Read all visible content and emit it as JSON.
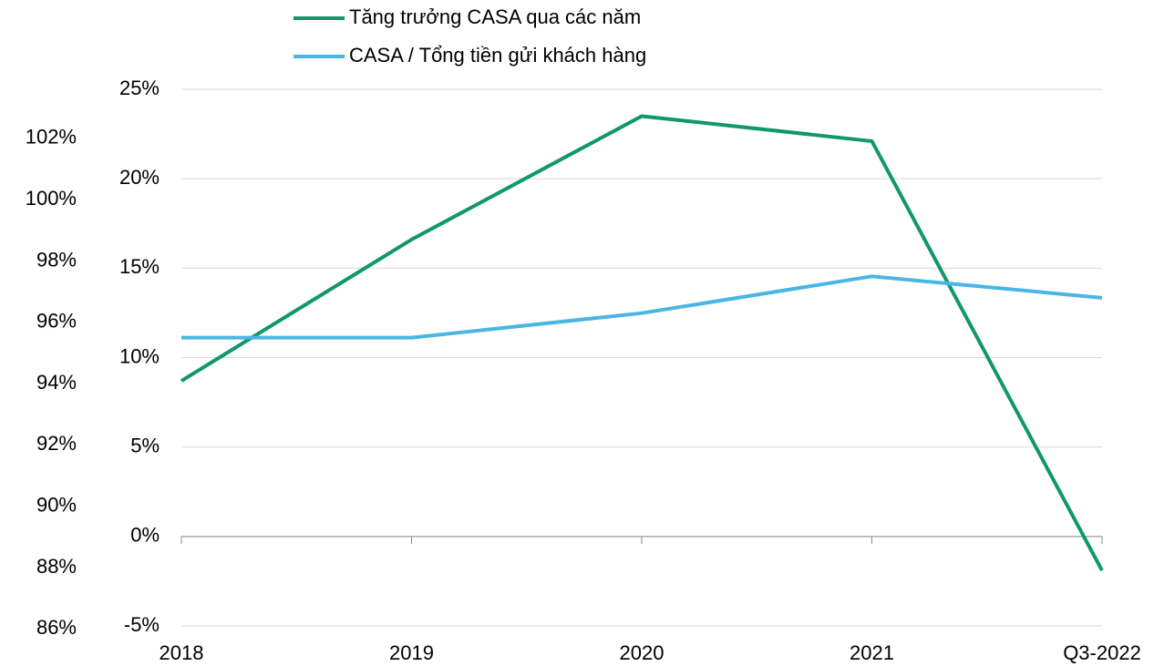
{
  "chart_data": {
    "type": "line",
    "categories": [
      "2018",
      "2019",
      "2020",
      "2021",
      "Q3-2022"
    ],
    "series": [
      {
        "name": "Tăng trưởng CASA qua các năm",
        "color": "#10976c",
        "values": [
          8.7,
          16.6,
          23.5,
          22.1,
          -1.9
        ]
      },
      {
        "name": "CASA / Tổng tiền gửi khách hàng",
        "color": "#4ab6e4",
        "axis": "y2",
        "values": [
          95.5,
          95.5,
          96.3,
          97.5,
          96.8
        ]
      }
    ],
    "ylim": [
      -5,
      25
    ],
    "yticks": [
      {
        "value": -5,
        "label": "-5%"
      },
      {
        "value": 0,
        "label": "0%"
      },
      {
        "value": 5,
        "label": "5%"
      },
      {
        "value": 10,
        "label": "10%"
      },
      {
        "value": 15,
        "label": "15%"
      },
      {
        "value": 20,
        "label": "20%"
      },
      {
        "value": 25,
        "label": "25%"
      }
    ],
    "y2lim": [
      86.1,
      103.6
    ],
    "y2ticks": [
      {
        "value": 86,
        "label": "86%"
      },
      {
        "value": 88,
        "label": "88%"
      },
      {
        "value": 90,
        "label": "90%"
      },
      {
        "value": 92,
        "label": "92%"
      },
      {
        "value": 94,
        "label": "94%"
      },
      {
        "value": 96,
        "label": "96%"
      },
      {
        "value": 98,
        "label": "98%"
      },
      {
        "value": 100,
        "label": "100%"
      },
      {
        "value": 102,
        "label": "102%"
      }
    ],
    "grid": true,
    "legend": "top"
  }
}
